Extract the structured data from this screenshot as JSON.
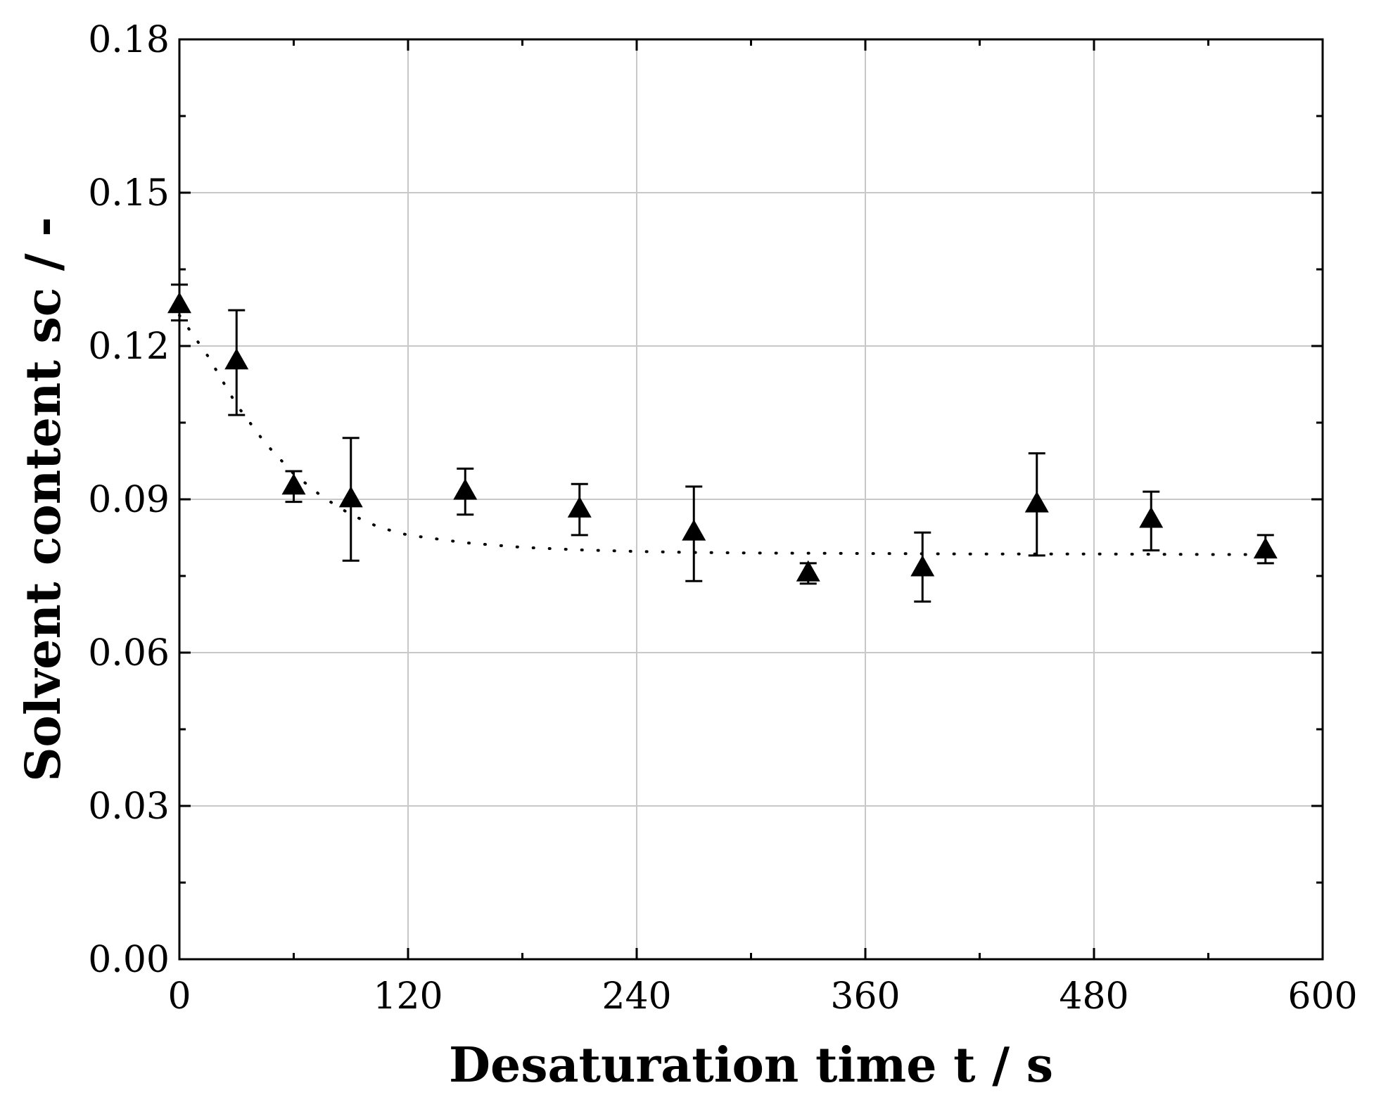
{
  "chart_data": {
    "type": "scatter",
    "xlabel": "Desaturation time t / s",
    "ylabel": "Solvent content sc / -",
    "xlim": [
      0,
      600
    ],
    "ylim": [
      0.0,
      0.18
    ],
    "x_ticks": [
      "0",
      "120",
      "240",
      "360",
      "480",
      "600"
    ],
    "y_ticks": [
      "0.00",
      "0.03",
      "0.06",
      "0.09",
      "0.12",
      "0.15",
      "0.18"
    ],
    "grid": true,
    "marker": "triangle",
    "color": "#000000",
    "grid_color": "#c8c8c8",
    "series": [
      {
        "x": [
          0,
          30,
          60,
          90,
          150,
          210,
          270,
          330,
          390,
          450,
          510,
          570
        ],
        "y": [
          0.128,
          0.117,
          0.0925,
          0.09,
          0.0915,
          0.088,
          0.0835,
          0.0755,
          0.0765,
          0.089,
          0.086,
          0.08
        ],
        "err_low": [
          0.125,
          0.1065,
          0.0895,
          0.078,
          0.087,
          0.083,
          0.074,
          0.0735,
          0.07,
          0.079,
          0.08,
          0.0775
        ],
        "err_high": [
          0.132,
          0.127,
          0.0955,
          0.102,
          0.096,
          0.093,
          0.0925,
          0.0775,
          0.0835,
          0.099,
          0.0915,
          0.083
        ]
      }
    ],
    "fit": {
      "style": "dotted",
      "x": [
        0,
        15,
        30,
        45,
        60,
        75,
        90,
        105,
        120,
        150,
        180,
        210,
        240,
        270,
        300,
        360,
        420,
        480,
        540,
        570
      ],
      "y": [
        0.126,
        0.118,
        0.1085,
        0.101,
        0.095,
        0.0905,
        0.087,
        0.0845,
        0.083,
        0.0815,
        0.0806,
        0.0801,
        0.0798,
        0.0796,
        0.0795,
        0.0794,
        0.0793,
        0.0793,
        0.0792,
        0.0792
      ]
    }
  }
}
